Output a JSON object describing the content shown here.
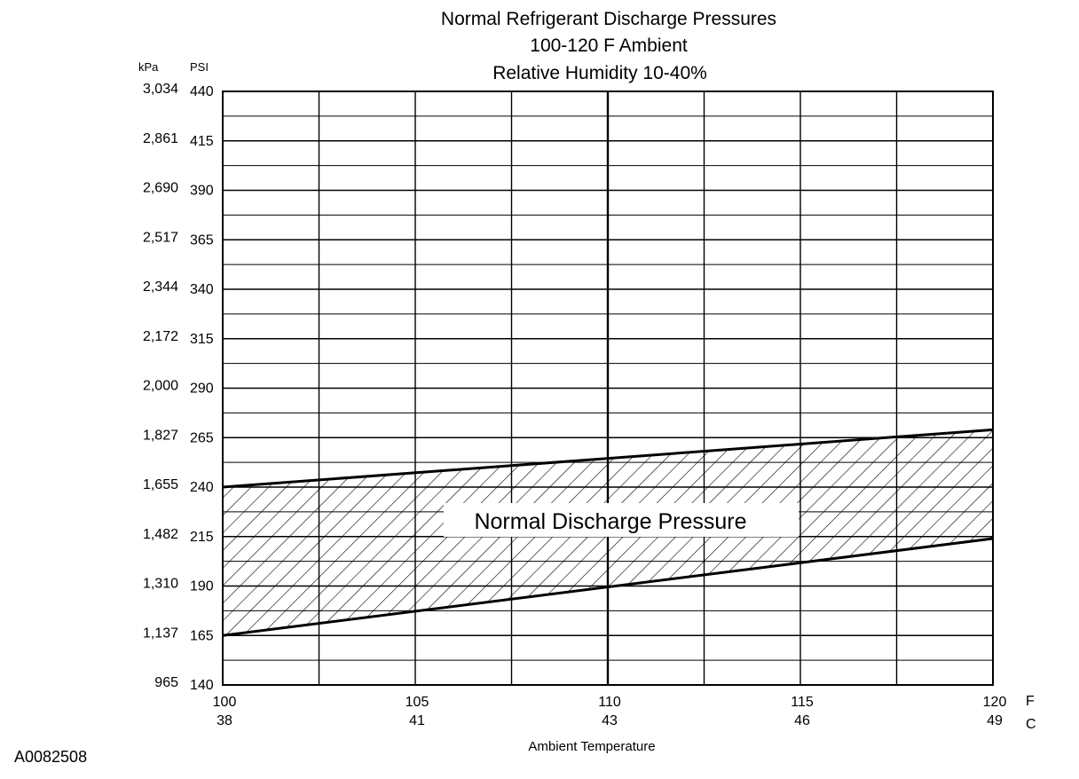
{
  "chart_data": {
    "type": "area",
    "title_lines": [
      "Normal  Refrigerant  Discharge  Pressures",
      "100-120 F Ambient",
      "Relative Humidity 10-40%"
    ],
    "xlabel": "Ambient Temperature",
    "x_unit_f": "F",
    "x_unit_c": "C",
    "y_unit_kpa": "kPa",
    "y_unit_psi": "PSI",
    "xlim": [
      100,
      120
    ],
    "ylim": [
      140,
      440
    ],
    "x_ticks_f": [
      "100",
      "105",
      "110",
      "115",
      "120"
    ],
    "x_ticks_c": [
      "38",
      "41",
      "43",
      "46",
      "49"
    ],
    "y_ticks_psi": [
      "440",
      "415",
      "390",
      "365",
      "340",
      "315",
      "290",
      "265",
      "240",
      "215",
      "190",
      "165",
      "140"
    ],
    "y_ticks_kpa": [
      "3,034",
      "2,861",
      "2,690",
      "2,517",
      "2,344",
      "2,172",
      "2,000",
      "1,827",
      "1,655",
      "1,482",
      "1,310",
      "1,137",
      "965"
    ],
    "grid": true,
    "series": [
      {
        "name": "Normal Discharge Pressure",
        "x": [
          100,
          120
        ],
        "upper": [
          240,
          269
        ],
        "lower": [
          165,
          214
        ]
      }
    ],
    "band_color": "#000000",
    "figure_id": "A0082508"
  }
}
